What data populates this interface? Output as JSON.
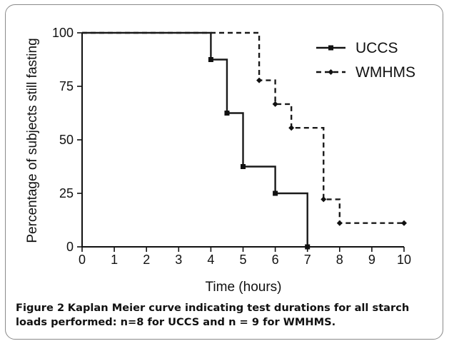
{
  "chart_data": {
    "type": "line",
    "step": true,
    "xlabel": "Time (hours)",
    "ylabel": "Percentage of subjects still fasting",
    "xlim": [
      0,
      10
    ],
    "ylim": [
      0,
      100
    ],
    "xticks": [
      "0",
      "1",
      "2",
      "3",
      "4",
      "5",
      "6",
      "7",
      "8",
      "9",
      "10"
    ],
    "yticks": [
      "0",
      "25",
      "50",
      "75",
      "100"
    ],
    "legend_position": "top-right",
    "series": [
      {
        "name": "UCCS",
        "line_style": "solid",
        "marker": "square",
        "color": "#1a1a1a",
        "points": [
          [
            0,
            100
          ],
          [
            4,
            87.5
          ],
          [
            4.5,
            62.5
          ],
          [
            5,
            37.5
          ],
          [
            6,
            25
          ],
          [
            7,
            0
          ]
        ]
      },
      {
        "name": "WMHMS",
        "line_style": "dashed",
        "marker": "diamond",
        "color": "#1a1a1a",
        "points": [
          [
            0,
            100
          ],
          [
            5.5,
            77.8
          ],
          [
            6,
            66.7
          ],
          [
            6.5,
            55.6
          ],
          [
            7.5,
            22.2
          ],
          [
            8,
            11.1
          ],
          [
            10,
            11.1
          ]
        ]
      }
    ]
  },
  "caption": {
    "label": "Figure 2",
    "text": "Kaplan Meier curve indicating test durations for all starch loads performed: n=8 for UCCS and n = 9 for WMHMS."
  }
}
